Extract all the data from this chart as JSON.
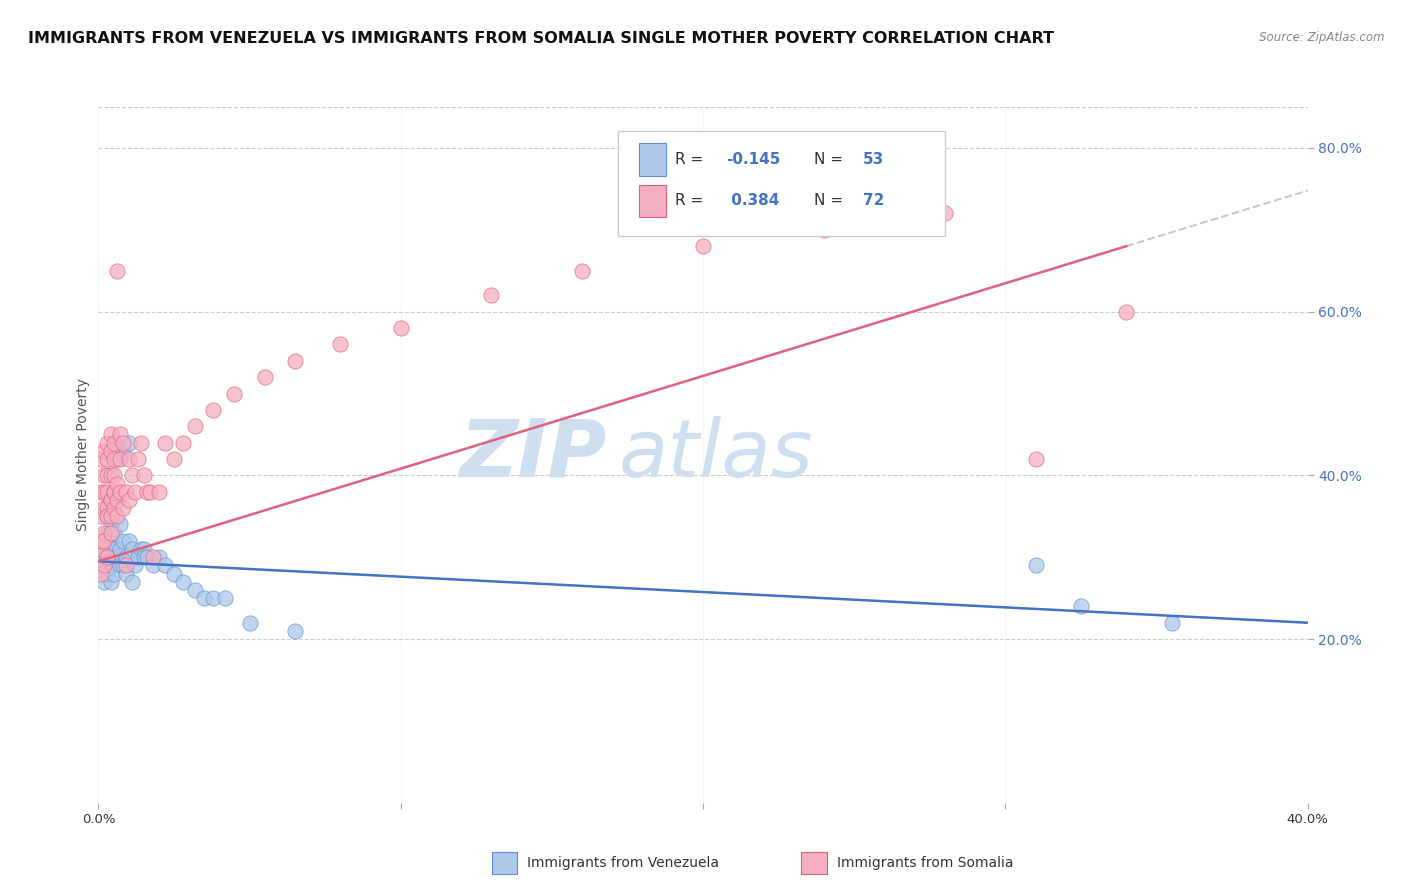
{
  "title": "IMMIGRANTS FROM VENEZUELA VS IMMIGRANTS FROM SOMALIA SINGLE MOTHER POVERTY CORRELATION CHART",
  "source": "Source: ZipAtlas.com",
  "ylabel": "Single Mother Poverty",
  "xlim": [
    0.0,
    0.4
  ],
  "ylim": [
    0.0,
    0.85
  ],
  "yticks_right": [
    0.2,
    0.4,
    0.6,
    0.8
  ],
  "ytick_labels_right": [
    "20.0%",
    "40.0%",
    "60.0%",
    "80.0%"
  ],
  "R_venezuela": -0.145,
  "N_venezuela": 53,
  "R_somalia": 0.384,
  "N_somalia": 72,
  "color_venezuela": "#adc8e8",
  "color_somalia": "#f5afc0",
  "edge_color_venezuela": "#5b8fd4",
  "edge_color_somalia": "#e06080",
  "line_color_venezuela": "#4472c4",
  "line_color_somalia": "#e06080",
  "dashed_line_color": "#c8c8c8",
  "venezuela_x": [
    0.001,
    0.001,
    0.002,
    0.002,
    0.002,
    0.003,
    0.003,
    0.003,
    0.003,
    0.004,
    0.004,
    0.004,
    0.004,
    0.004,
    0.005,
    0.005,
    0.005,
    0.005,
    0.006,
    0.006,
    0.006,
    0.007,
    0.007,
    0.007,
    0.008,
    0.008,
    0.008,
    0.009,
    0.009,
    0.01,
    0.01,
    0.011,
    0.011,
    0.012,
    0.013,
    0.014,
    0.015,
    0.015,
    0.016,
    0.018,
    0.02,
    0.022,
    0.025,
    0.028,
    0.032,
    0.035,
    0.038,
    0.042,
    0.05,
    0.065,
    0.31,
    0.325,
    0.355
  ],
  "venezuela_y": [
    0.3,
    0.32,
    0.31,
    0.29,
    0.27,
    0.33,
    0.3,
    0.28,
    0.35,
    0.31,
    0.29,
    0.34,
    0.27,
    0.32,
    0.3,
    0.28,
    0.33,
    0.31,
    0.44,
    0.42,
    0.3,
    0.31,
    0.29,
    0.34,
    0.43,
    0.32,
    0.29,
    0.3,
    0.28,
    0.44,
    0.32,
    0.31,
    0.27,
    0.29,
    0.3,
    0.31,
    0.31,
    0.3,
    0.3,
    0.29,
    0.3,
    0.29,
    0.28,
    0.27,
    0.26,
    0.25,
    0.25,
    0.25,
    0.22,
    0.21,
    0.29,
    0.24,
    0.22
  ],
  "somalia_x": [
    0.001,
    0.001,
    0.001,
    0.001,
    0.001,
    0.001,
    0.002,
    0.002,
    0.002,
    0.002,
    0.002,
    0.002,
    0.002,
    0.003,
    0.003,
    0.003,
    0.003,
    0.003,
    0.003,
    0.003,
    0.004,
    0.004,
    0.004,
    0.004,
    0.004,
    0.004,
    0.004,
    0.005,
    0.005,
    0.005,
    0.005,
    0.005,
    0.005,
    0.006,
    0.006,
    0.006,
    0.006,
    0.007,
    0.007,
    0.007,
    0.008,
    0.008,
    0.009,
    0.009,
    0.01,
    0.01,
    0.011,
    0.012,
    0.013,
    0.014,
    0.015,
    0.016,
    0.017,
    0.018,
    0.02,
    0.022,
    0.025,
    0.028,
    0.032,
    0.038,
    0.045,
    0.055,
    0.065,
    0.08,
    0.1,
    0.13,
    0.16,
    0.2,
    0.24,
    0.28,
    0.31,
    0.34
  ],
  "somalia_y": [
    0.31,
    0.35,
    0.28,
    0.42,
    0.38,
    0.32,
    0.29,
    0.36,
    0.33,
    0.4,
    0.43,
    0.38,
    0.32,
    0.36,
    0.38,
    0.4,
    0.35,
    0.42,
    0.44,
    0.3,
    0.37,
    0.4,
    0.35,
    0.43,
    0.45,
    0.37,
    0.33,
    0.38,
    0.42,
    0.36,
    0.44,
    0.4,
    0.38,
    0.37,
    0.39,
    0.35,
    0.65,
    0.38,
    0.42,
    0.45,
    0.36,
    0.44,
    0.29,
    0.38,
    0.37,
    0.42,
    0.4,
    0.38,
    0.42,
    0.44,
    0.4,
    0.38,
    0.38,
    0.3,
    0.38,
    0.44,
    0.42,
    0.44,
    0.46,
    0.48,
    0.5,
    0.52,
    0.54,
    0.56,
    0.58,
    0.62,
    0.65,
    0.68,
    0.7,
    0.72,
    0.42,
    0.6
  ],
  "background_color": "#ffffff",
  "grid_color": "#cccccc",
  "watermark_zip": "ZIP",
  "watermark_atlas": "atlas",
  "watermark_color": "#d0dff0",
  "title_fontsize": 11.5,
  "axis_label_fontsize": 10,
  "tick_fontsize": 9.5,
  "legend_fontsize": 12
}
